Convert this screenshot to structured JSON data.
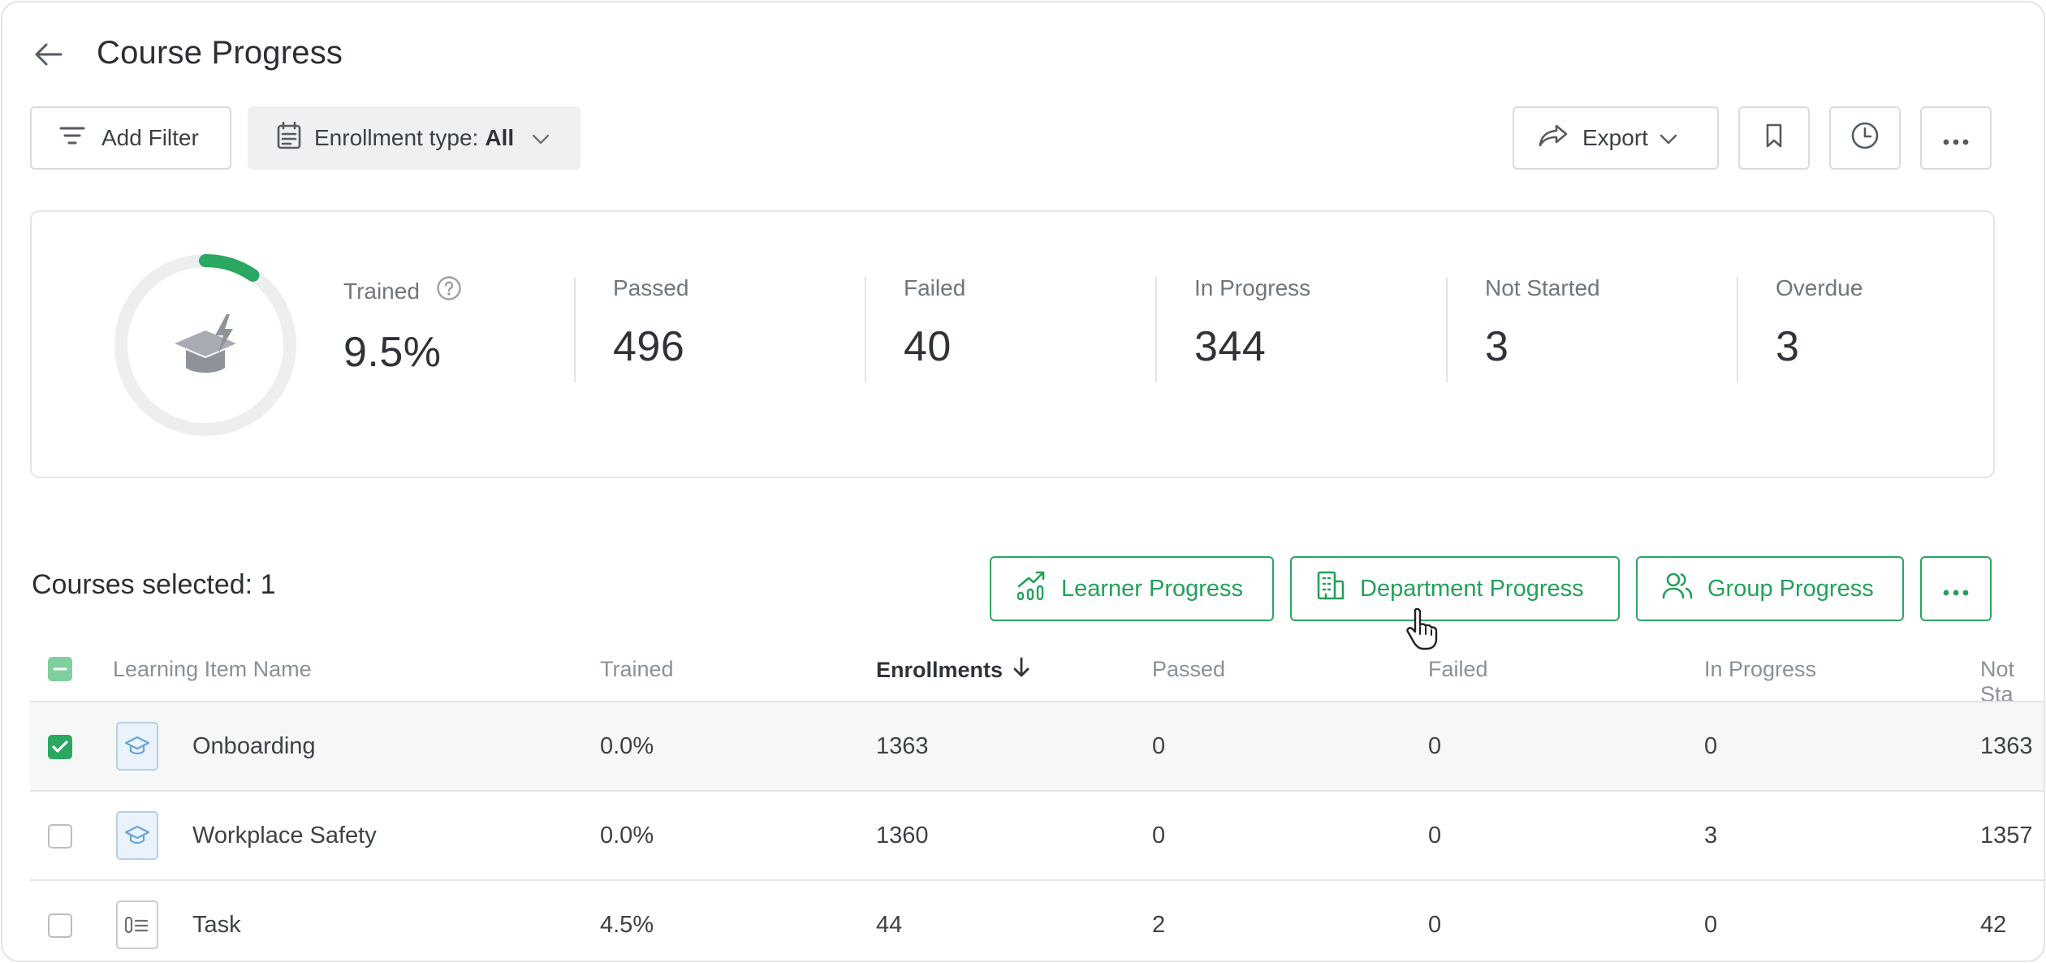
{
  "header": {
    "title": "Course Progress"
  },
  "toolbar": {
    "add_filter": "Add Filter",
    "enrollment_label": "Enrollment type:",
    "enrollment_value": "All",
    "export": "Export"
  },
  "summary": {
    "trained_fraction": 0.095,
    "stats": [
      {
        "label": "Trained",
        "value": "9.5%"
      },
      {
        "label": "Passed",
        "value": "496"
      },
      {
        "label": "Failed",
        "value": "40"
      },
      {
        "label": "In Progress",
        "value": "344"
      },
      {
        "label": "Not Started",
        "value": "3"
      },
      {
        "label": "Overdue",
        "value": "3"
      }
    ]
  },
  "section": {
    "selected": "Courses selected: 1",
    "learner_progress": "Learner Progress",
    "department_progress": "Department Progress",
    "group_progress": "Group Progress"
  },
  "table": {
    "columns": [
      "Learning Item Name",
      "Trained",
      "Enrollments",
      "Passed",
      "Failed",
      "In Progress",
      "Not Sta"
    ],
    "rows": [
      {
        "name": "Onboarding",
        "trained": "0.0%",
        "enrollments": "1363",
        "passed": "0",
        "failed": "0",
        "in_progress": "0",
        "not_started": "1363",
        "checked": true,
        "icon": "course-icon"
      },
      {
        "name": "Workplace Safety",
        "trained": "0.0%",
        "enrollments": "1360",
        "passed": "0",
        "failed": "0",
        "in_progress": "3",
        "not_started": "1357",
        "checked": false,
        "icon": "course-icon"
      },
      {
        "name": "Task",
        "trained": "4.5%",
        "enrollments": "44",
        "passed": "2",
        "failed": "0",
        "in_progress": "0",
        "not_started": "42",
        "checked": false,
        "icon": "task-icon"
      }
    ]
  },
  "colors": {
    "accent": "#2aa760",
    "ring_track": "#eceef0"
  }
}
